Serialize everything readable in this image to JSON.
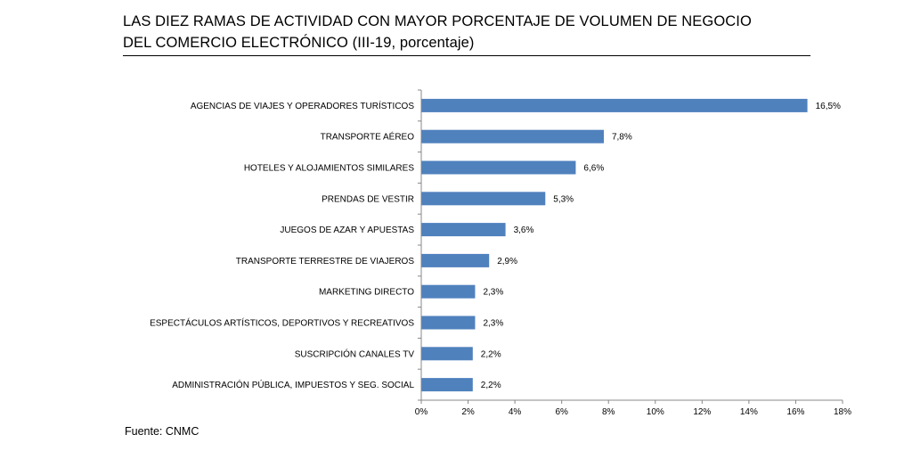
{
  "title": {
    "line1": "LAS DIEZ RAMAS DE ACTIVIDAD CON MAYOR PORCENTAJE DE VOLUMEN DE NEGOCIO",
    "line2": "DEL COMERCIO ELECTRÓNICO (III-19, porcentaje)"
  },
  "source": "Fuente: CNMC",
  "bar_color": "#4F81BD",
  "chart_data": {
    "type": "bar",
    "orientation": "horizontal",
    "title": "LAS DIEZ RAMAS DE ACTIVIDAD CON MAYOR PORCENTAJE DE VOLUMEN DE NEGOCIO DEL COMERCIO ELECTRÓNICO (III-19, porcentaje)",
    "xlabel": "",
    "ylabel": "",
    "xlim": [
      0,
      18
    ],
    "categories": [
      "AGENCIAS DE VIAJES Y OPERADORES TURÍSTICOS",
      "TRANSPORTE AÉREO",
      "HOTELES  Y ALOJAMIENTOS SIMILARES",
      "PRENDAS DE VESTIR",
      "JUEGOS DE AZAR Y APUESTAS",
      "TRANSPORTE TERRESTRE DE VIAJEROS",
      "MARKETING DIRECTO",
      "ESPECTÁCULOS ARTÍSTICOS, DEPORTIVOS Y RECREATIVOS",
      "SUSCRIPCIÓN CANALES TV",
      "ADMINISTRACIÓN PÚBLICA, IMPUESTOS Y SEG. SOCIAL"
    ],
    "values": [
      16.5,
      7.8,
      6.6,
      5.3,
      3.6,
      2.9,
      2.3,
      2.3,
      2.2,
      2.2
    ],
    "value_labels": [
      "16,5%",
      "7,8%",
      "6,6%",
      "5,3%",
      "3,6%",
      "2,9%",
      "2,3%",
      "2,3%",
      "2,2%",
      "2,2%"
    ],
    "x_ticks": [
      0,
      2,
      4,
      6,
      8,
      10,
      12,
      14,
      16,
      18
    ],
    "x_tick_labels": [
      "0%",
      "2%",
      "4%",
      "6%",
      "8%",
      "10%",
      "12%",
      "14%",
      "16%",
      "18%"
    ],
    "grid": false,
    "legend": "none"
  }
}
